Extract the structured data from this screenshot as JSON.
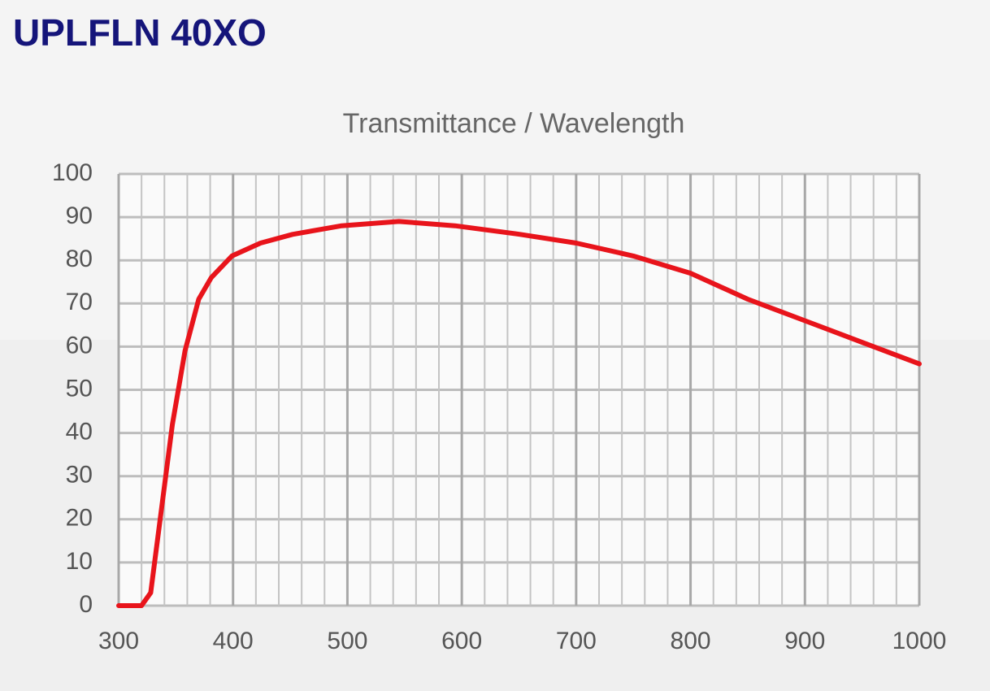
{
  "page_title": "UPLFLN 40XO",
  "chart_data": {
    "type": "line",
    "title": "Transmittance / Wavelength",
    "x": [
      300,
      310,
      320,
      328,
      347,
      358,
      370,
      381,
      399,
      424,
      452,
      495,
      545,
      594,
      651,
      700,
      750,
      800,
      850,
      900,
      950,
      1000
    ],
    "series": [
      {
        "color": "#e8141b",
        "values": [
          0,
          0,
          0,
          3,
          42,
          59,
          71,
          76,
          81,
          84,
          86,
          88,
          89,
          88,
          86,
          84,
          81,
          77,
          71,
          66,
          61,
          56
        ]
      }
    ],
    "xlim": [
      300,
      1000
    ],
    "xticks": [
      300,
      400,
      500,
      600,
      700,
      800,
      900,
      1000
    ],
    "ylim": [
      0,
      100
    ],
    "yticks": [
      0,
      10,
      20,
      30,
      40,
      50,
      60,
      70,
      80,
      90,
      100
    ],
    "grid": true,
    "minor_grid_per_major": 5
  }
}
